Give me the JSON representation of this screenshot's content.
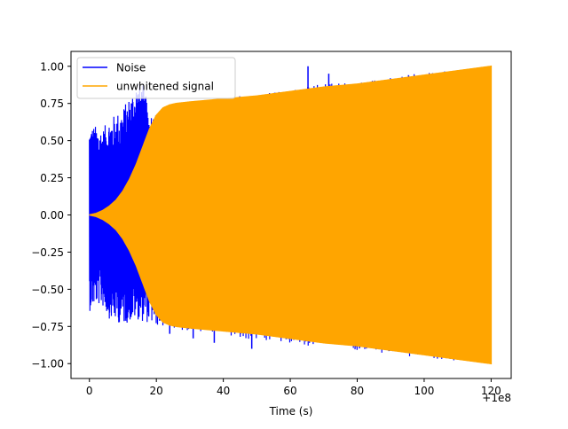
{
  "chart_data": {
    "type": "line",
    "title": "",
    "xlabel": "Time (s)",
    "ylabel": "",
    "x_offset_label": "+1e8",
    "xlim": [
      -5.5,
      126.0
    ],
    "ylim": [
      -1.1,
      1.1
    ],
    "x_ticks": [
      0,
      20,
      40,
      60,
      80,
      100,
      120
    ],
    "x_tick_labels": [
      "0",
      "20",
      "40",
      "60",
      "80",
      "100",
      "120"
    ],
    "y_ticks": [
      -1.0,
      -0.75,
      -0.5,
      -0.25,
      0.0,
      0.25,
      0.5,
      0.75,
      1.0
    ],
    "y_tick_labels": [
      "−1.00",
      "−0.75",
      "−0.50",
      "−0.25",
      "0.00",
      "0.25",
      "0.50",
      "0.75",
      "1.00"
    ],
    "grid": false,
    "legend_position": "top-left",
    "series": [
      {
        "name": "Noise",
        "color": "#0000ff",
        "envelope": {
          "x": [
            0,
            2,
            4,
            6,
            8,
            10,
            12,
            14,
            16,
            18,
            20,
            30,
            40,
            50,
            60,
            70,
            80,
            90,
            100,
            110,
            120
          ],
          "upper": [
            0.6,
            0.6,
            0.58,
            0.65,
            0.68,
            0.72,
            0.8,
            0.9,
            0.88,
            0.7,
            0.7,
            0.75,
            0.78,
            0.82,
            0.85,
            0.88,
            0.9,
            0.93,
            0.96,
            0.98,
            1.0
          ],
          "lower": [
            -0.65,
            -0.6,
            -0.62,
            -0.7,
            -0.72,
            -0.74,
            -0.72,
            -0.7,
            -0.72,
            -0.73,
            -0.75,
            -0.78,
            -0.82,
            -0.85,
            -0.87,
            -0.89,
            -0.91,
            -0.94,
            -0.96,
            -0.98,
            -1.0
          ]
        },
        "spikes": [
          {
            "x": 65.3,
            "y": 1.0
          },
          {
            "x": 71.5,
            "y": 0.95
          },
          {
            "x": 61.5,
            "y": 0.84
          },
          {
            "x": 52.5,
            "y": 0.8
          },
          {
            "x": 48.5,
            "y": -0.9
          },
          {
            "x": 37.3,
            "y": -0.86
          },
          {
            "x": 31.0,
            "y": -0.83
          },
          {
            "x": 24.0,
            "y": -0.8
          }
        ]
      },
      {
        "name": "unwhitened signal",
        "color": "#ffa500",
        "envelope": {
          "x": [
            0,
            2,
            4,
            6,
            8,
            10,
            12,
            14,
            16,
            18,
            20,
            22,
            24,
            26,
            30,
            40,
            50,
            60,
            70,
            80,
            90,
            100,
            110,
            120
          ],
          "upper": [
            0.0,
            0.01,
            0.03,
            0.06,
            0.1,
            0.16,
            0.24,
            0.34,
            0.46,
            0.58,
            0.67,
            0.72,
            0.74,
            0.75,
            0.76,
            0.78,
            0.8,
            0.83,
            0.86,
            0.88,
            0.91,
            0.94,
            0.97,
            1.0
          ],
          "lower": [
            0.0,
            -0.01,
            -0.03,
            -0.06,
            -0.1,
            -0.16,
            -0.24,
            -0.34,
            -0.46,
            -0.58,
            -0.67,
            -0.72,
            -0.74,
            -0.75,
            -0.76,
            -0.78,
            -0.8,
            -0.83,
            -0.86,
            -0.88,
            -0.91,
            -0.94,
            -0.97,
            -1.0
          ]
        }
      }
    ]
  }
}
